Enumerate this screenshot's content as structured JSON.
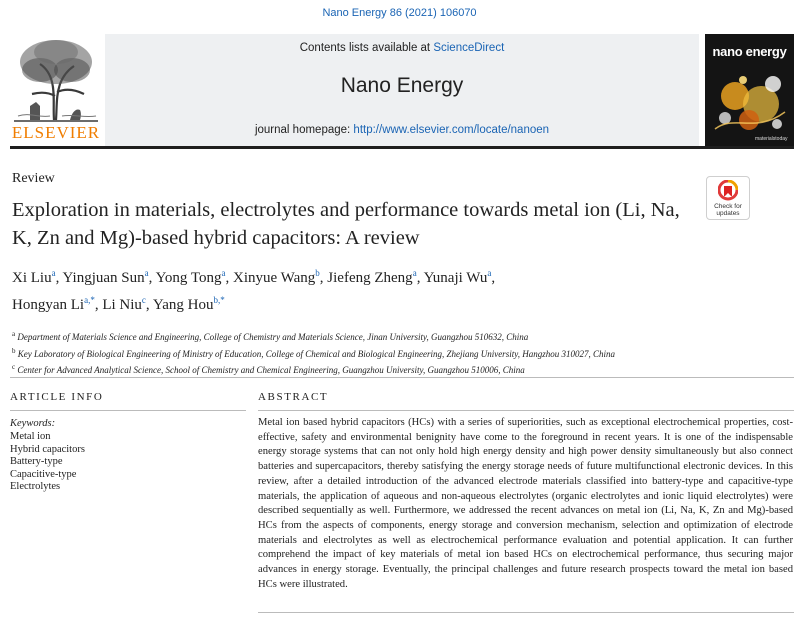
{
  "citation": "Nano Energy 86 (2021) 106070",
  "publisher": "ELSEVIER",
  "header": {
    "contents_prefix": "Contents lists available at ",
    "contents_link": "ScienceDirect",
    "journal_title": "Nano Energy",
    "homepage_prefix": "journal homepage: ",
    "homepage_link": "http://www.elsevier.com/locate/nanoen"
  },
  "cover": {
    "title": "nano energy",
    "badge": "materialstoday"
  },
  "check_updates": {
    "label_line1": "Check for",
    "label_line2": "updates"
  },
  "article_type": "Review",
  "title": "Exploration in materials, electrolytes and performance towards metal ion (Li, Na, K, Zn and Mg)-based hybrid capacitors: A review",
  "authors": [
    {
      "name": "Xi Liu",
      "sup": "a",
      "sep": ", "
    },
    {
      "name": "Yingjuan Sun",
      "sup": "a",
      "sep": ", "
    },
    {
      "name": "Yong Tong",
      "sup": "a",
      "sep": ", "
    },
    {
      "name": "Xinyue Wang",
      "sup": "b",
      "sep": ", "
    },
    {
      "name": "Jiefeng Zheng",
      "sup": "a",
      "sep": ", "
    },
    {
      "name": "Yunaji Wu",
      "sup": "a",
      "sep": ","
    },
    {
      "name": "Hongyan Li",
      "sup": "a,*",
      "sep": ", "
    },
    {
      "name": "Li Niu",
      "sup": "c",
      "sep": ", "
    },
    {
      "name": "Yang Hou",
      "sup": "b,*",
      "sep": ""
    }
  ],
  "affiliations": [
    {
      "mark": "a",
      "text": "Department of Materials Science and Engineering, College of Chemistry and Materials Science, Jinan University, Guangzhou 510632, China"
    },
    {
      "mark": "b",
      "text": "Key Laboratory of Biological Engineering of Ministry of Education, College of Chemical and Biological Engineering, Zhejiang University, Hangzhou 310027, China"
    },
    {
      "mark": "c",
      "text": "Center for Advanced Analytical Science, School of Chemistry and Chemical Engineering, Guangzhou University, Guangzhou 510006, China"
    }
  ],
  "article_info": {
    "heading": "ARTICLE INFO",
    "keywords_label": "Keywords:",
    "keywords": [
      "Metal ion",
      "Hybrid capacitors",
      "Battery-type",
      "Capacitive-type",
      "Electrolytes"
    ]
  },
  "abstract": {
    "heading": "ABSTRACT",
    "text": "Metal ion based hybrid capacitors (HCs) with a series of superiorities, such as exceptional electrochemical properties, cost-effective, safety and environmental benignity have come to the foreground in recent years. It is one of the indispensable energy storage systems that can not only hold high energy density and high power density simultaneously but also connect batteries and supercapacitors, thereby satisfying the energy storage needs of future multifunctional electronic devices. In this review, after a detailed introduction of the advanced electrode materials classified into battery-type and capacitive-type materials, the application of aqueous and non-aqueous electrolytes (organic electrolytes and ionic liquid electrolytes) were described sequentially as well. Furthermore, we addressed the recent advances on metal ion (Li, Na, K, Zn and Mg)-based HCs from the aspects of components, energy storage and conversion mechanism, selection and optimization of electrode materials and electrolytes as well as electrochemical performance evaluation and potential application. It can further comprehend the impact of key materials of metal ion based HCs on electrochemical performance, thus securing major advances in energy storage. Eventually, the principal challenges and future research prospects toward the metal ion based HCs were illustrated."
  },
  "colors": {
    "link": "#1a64b4",
    "elsevier_orange": "#f07d00",
    "header_band": "#eef0f2",
    "cover_bg": "#1a1a1a"
  }
}
